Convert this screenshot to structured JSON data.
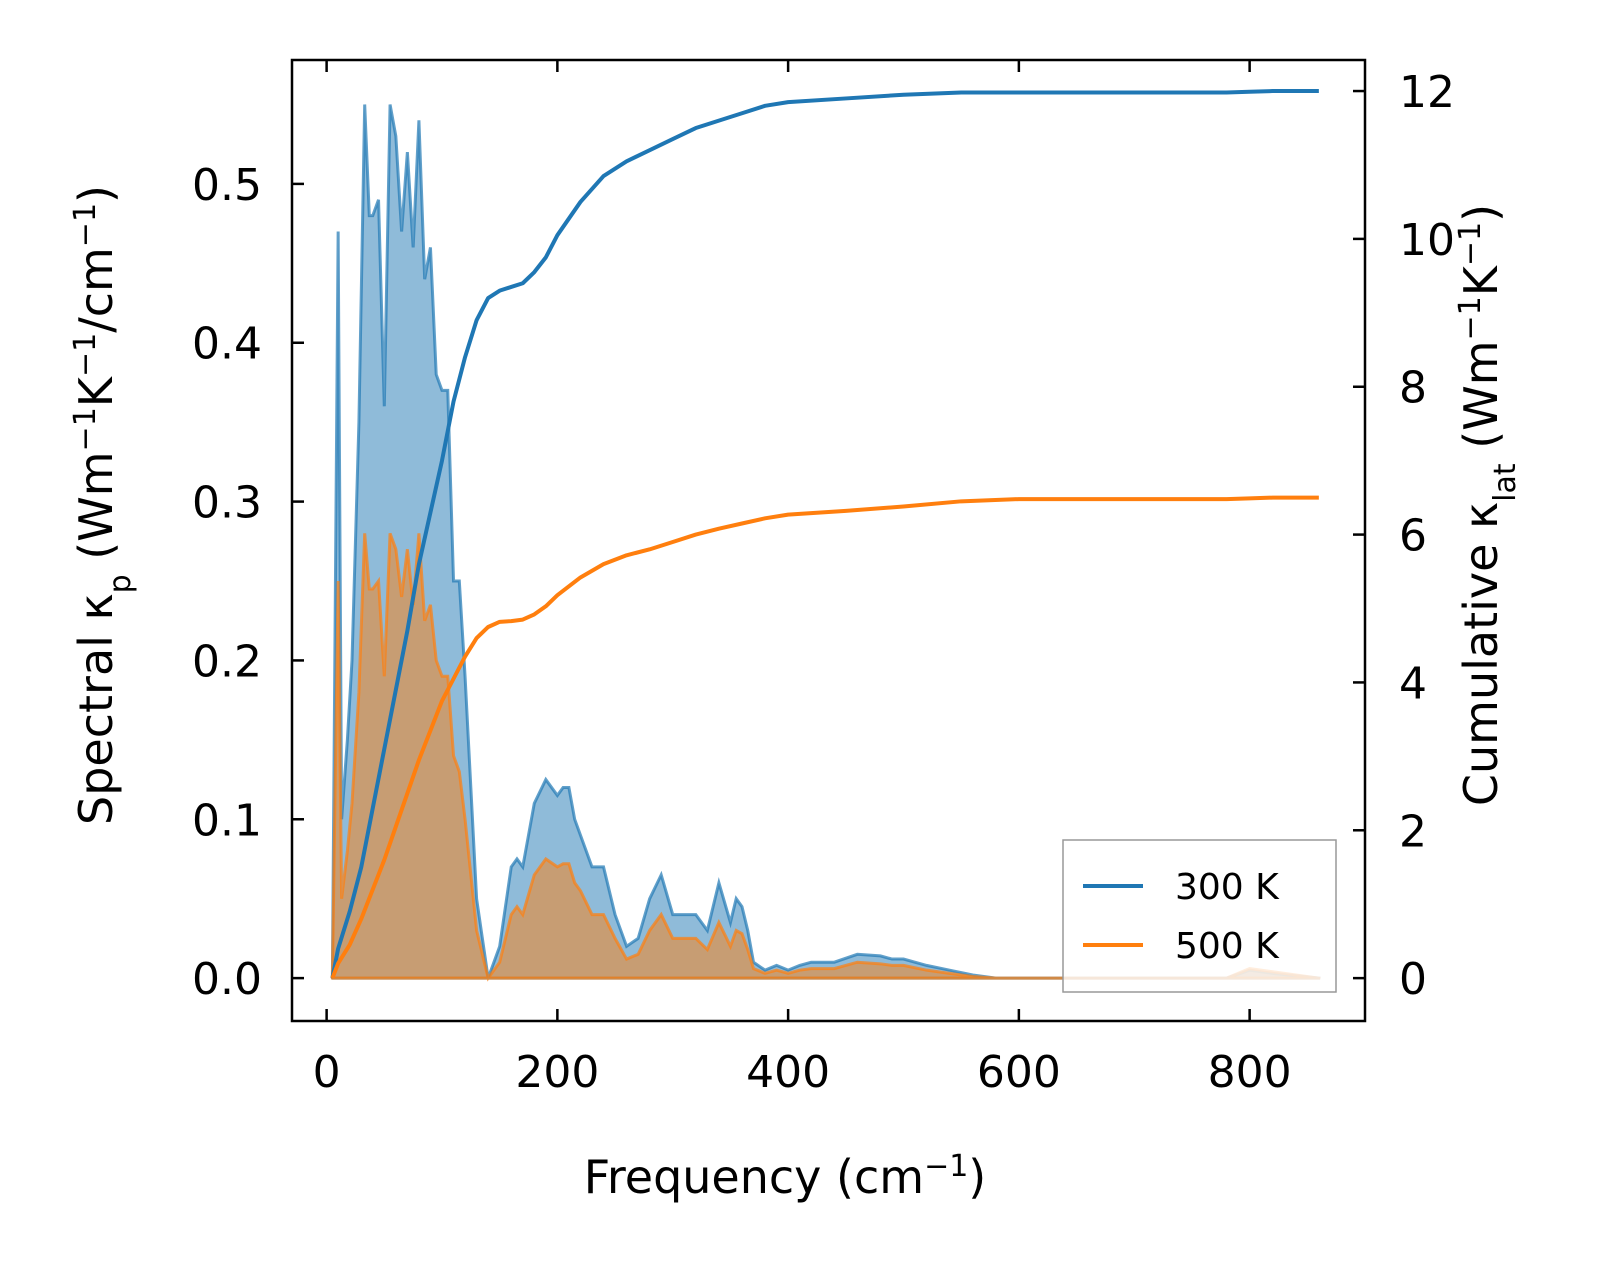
{
  "chart_data": {
    "type": "line",
    "x_label_main": "Frequency (cm",
    "x_label_sup": "−1",
    "x_label_end": ")",
    "y_left_label": "Spectral κ",
    "y_left_label_sub": "p",
    "y_left_label_rest": " (Wm",
    "y_left_sup1": "−1",
    "y_left_mid": "K",
    "y_left_sup2": "−1",
    "y_left_end": "/cm",
    "y_left_sup3": "−1",
    "y_left_close": ")",
    "y_right_label": "Cumulative κ",
    "y_right_label_sub": "lat",
    "y_right_label_rest": " (Wm",
    "y_right_sup1": "−1",
    "y_right_mid": "K",
    "y_right_sup2": "−1",
    "y_right_close": ")",
    "xlim": [
      -30,
      900
    ],
    "ylim_left": [
      -0.027,
      0.578
    ],
    "ylim_right": [
      -0.58,
      12.42
    ],
    "x_ticks": [
      0,
      200,
      400,
      600,
      800
    ],
    "x_tick_labels": [
      "0",
      "200",
      "400",
      "600",
      "800"
    ],
    "y_left_ticks": [
      0.0,
      0.1,
      0.2,
      0.3,
      0.4,
      0.5
    ],
    "y_left_tick_labels": [
      "0.0",
      "0.1",
      "0.2",
      "0.3",
      "0.4",
      "0.5"
    ],
    "y_right_ticks": [
      0,
      2,
      4,
      6,
      8,
      10,
      12
    ],
    "y_right_tick_labels": [
      "0",
      "2",
      "4",
      "6",
      "8",
      "10",
      "12"
    ],
    "colors": {
      "t300": "#1f77b4",
      "t500": "#ff7f0e"
    },
    "legend": {
      "position": "lower-right",
      "entries": [
        "300 K",
        "500 K"
      ]
    },
    "spectral_series": [
      {
        "name": "300 K",
        "x": [
          5,
          10,
          13,
          18,
          22,
          28,
          33,
          37,
          40,
          45,
          50,
          55,
          60,
          65,
          70,
          75,
          80,
          85,
          90,
          95,
          100,
          105,
          110,
          115,
          120,
          125,
          130,
          140,
          150,
          160,
          165,
          170,
          180,
          190,
          200,
          205,
          210,
          215,
          220,
          230,
          240,
          250,
          260,
          270,
          280,
          290,
          300,
          310,
          320,
          330,
          340,
          350,
          355,
          360,
          365,
          370,
          380,
          390,
          400,
          410,
          420,
          440,
          460,
          480,
          490,
          500,
          520,
          540,
          560,
          580,
          600,
          650,
          700,
          750,
          780,
          800,
          820,
          860
        ],
        "y": [
          0.0,
          0.47,
          0.1,
          0.15,
          0.2,
          0.35,
          0.55,
          0.48,
          0.48,
          0.49,
          0.36,
          0.55,
          0.53,
          0.47,
          0.52,
          0.46,
          0.54,
          0.44,
          0.46,
          0.38,
          0.37,
          0.37,
          0.25,
          0.25,
          0.19,
          0.12,
          0.05,
          0.0,
          0.02,
          0.07,
          0.075,
          0.07,
          0.11,
          0.125,
          0.115,
          0.12,
          0.12,
          0.1,
          0.09,
          0.07,
          0.07,
          0.04,
          0.02,
          0.025,
          0.05,
          0.065,
          0.04,
          0.04,
          0.04,
          0.03,
          0.06,
          0.035,
          0.05,
          0.045,
          0.03,
          0.01,
          0.005,
          0.008,
          0.005,
          0.008,
          0.01,
          0.01,
          0.015,
          0.014,
          0.012,
          0.012,
          0.008,
          0.005,
          0.002,
          0.0,
          0.0,
          0.0,
          0.0,
          0.0,
          0.0,
          0.005,
          0.003,
          0.0
        ]
      },
      {
        "name": "500 K",
        "x": [
          5,
          10,
          13,
          18,
          22,
          28,
          33,
          37,
          40,
          45,
          50,
          55,
          60,
          65,
          70,
          75,
          80,
          85,
          90,
          95,
          100,
          105,
          110,
          115,
          120,
          125,
          130,
          140,
          150,
          160,
          165,
          170,
          180,
          190,
          200,
          205,
          210,
          215,
          220,
          230,
          240,
          250,
          260,
          270,
          280,
          290,
          300,
          310,
          320,
          330,
          340,
          350,
          355,
          360,
          365,
          370,
          380,
          390,
          400,
          410,
          420,
          440,
          460,
          480,
          490,
          500,
          520,
          540,
          560,
          580,
          600,
          650,
          700,
          750,
          780,
          800,
          820,
          860
        ],
        "y": [
          0.0,
          0.25,
          0.05,
          0.08,
          0.11,
          0.18,
          0.28,
          0.245,
          0.245,
          0.25,
          0.19,
          0.28,
          0.27,
          0.24,
          0.27,
          0.235,
          0.28,
          0.225,
          0.235,
          0.2,
          0.19,
          0.19,
          0.14,
          0.13,
          0.1,
          0.065,
          0.03,
          0.0,
          0.01,
          0.04,
          0.045,
          0.04,
          0.065,
          0.075,
          0.07,
          0.072,
          0.072,
          0.06,
          0.055,
          0.04,
          0.04,
          0.025,
          0.012,
          0.015,
          0.03,
          0.04,
          0.025,
          0.025,
          0.025,
          0.018,
          0.035,
          0.02,
          0.03,
          0.028,
          0.018,
          0.006,
          0.003,
          0.005,
          0.003,
          0.005,
          0.006,
          0.006,
          0.01,
          0.009,
          0.008,
          0.008,
          0.005,
          0.003,
          0.001,
          0.0,
          0.0,
          0.0,
          0.0,
          0.0,
          0.0,
          0.006,
          0.004,
          0.0
        ]
      }
    ],
    "cumulative_series": [
      {
        "name": "300 K",
        "x": [
          5,
          10,
          20,
          30,
          40,
          50,
          60,
          70,
          80,
          90,
          100,
          110,
          120,
          130,
          140,
          150,
          160,
          170,
          180,
          190,
          200,
          220,
          240,
          260,
          280,
          300,
          320,
          340,
          360,
          380,
          400,
          450,
          500,
          550,
          600,
          700,
          780,
          800,
          820,
          860
        ],
        "y": [
          0.0,
          0.4,
          0.9,
          1.5,
          2.3,
          3.1,
          3.9,
          4.7,
          5.6,
          6.3,
          7.0,
          7.8,
          8.4,
          8.9,
          9.2,
          9.3,
          9.35,
          9.4,
          9.55,
          9.75,
          10.05,
          10.5,
          10.85,
          11.05,
          11.2,
          11.35,
          11.5,
          11.6,
          11.7,
          11.8,
          11.85,
          11.9,
          11.95,
          11.98,
          11.98,
          11.98,
          11.98,
          11.99,
          12.0,
          12.0
        ]
      },
      {
        "name": "500 K",
        "x": [
          5,
          10,
          20,
          30,
          40,
          50,
          60,
          70,
          80,
          90,
          100,
          110,
          120,
          130,
          140,
          150,
          160,
          170,
          180,
          190,
          200,
          220,
          240,
          260,
          280,
          300,
          320,
          340,
          360,
          380,
          400,
          450,
          500,
          550,
          600,
          700,
          780,
          800,
          820,
          860
        ],
        "y": [
          0.0,
          0.2,
          0.45,
          0.8,
          1.2,
          1.6,
          2.05,
          2.5,
          2.95,
          3.35,
          3.75,
          4.05,
          4.35,
          4.6,
          4.75,
          4.82,
          4.83,
          4.85,
          4.92,
          5.03,
          5.18,
          5.42,
          5.6,
          5.72,
          5.8,
          5.9,
          6.0,
          6.08,
          6.15,
          6.22,
          6.27,
          6.32,
          6.38,
          6.45,
          6.48,
          6.48,
          6.48,
          6.49,
          6.5,
          6.5
        ]
      }
    ]
  }
}
